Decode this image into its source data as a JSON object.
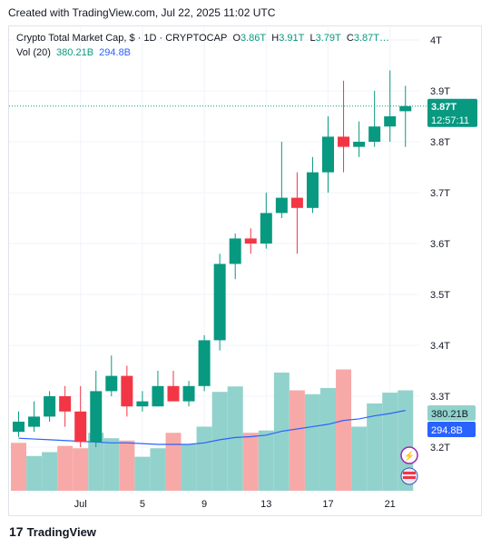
{
  "header": {
    "created_text": "Created with TradingView.com, Jul 22, 2025 11:02 UTC"
  },
  "legend": {
    "symbol": "Crypto Total Market Cap, $ · 1D · CRYPTOCAP",
    "o_label": "O",
    "o_value": "3.86T",
    "h_label": "H",
    "h_value": "3.91T",
    "l_label": "L",
    "l_value": "3.79T",
    "c_label": "C",
    "c_value": "3.87T…",
    "vol_label": "Vol (20)",
    "vol_value": "380.21B",
    "vol_ma_value": "294.8B"
  },
  "badges": {
    "price": "3.87T",
    "countdown": "12:57:11",
    "volume": "380.21B",
    "volume_ma": "294.8B"
  },
  "footer": {
    "brand": "TradingView"
  },
  "colors": {
    "up": "#089981",
    "down": "#f23645",
    "vol_up": "#92d2cc",
    "vol_down": "#f7a9a7",
    "ma": "#2962ff"
  },
  "chart_data": {
    "type": "candlestick",
    "y_axis_ticks": [
      "4T",
      "3.9T",
      "3.8T",
      "3.7T",
      "3.6T",
      "3.5T",
      "3.4T",
      "3.3T",
      "3.2T"
    ],
    "x_axis_ticks": [
      "Jul",
      "5",
      "9",
      "13",
      "17",
      "21"
    ],
    "ylim": [
      3.1,
      4.0
    ],
    "last_close": 3.87,
    "candles": [
      {
        "o": 3.23,
        "h": 3.27,
        "l": 3.22,
        "c": 3.25
      },
      {
        "o": 3.24,
        "h": 3.29,
        "l": 3.23,
        "c": 3.26
      },
      {
        "o": 3.26,
        "h": 3.31,
        "l": 3.25,
        "c": 3.3
      },
      {
        "o": 3.3,
        "h": 3.32,
        "l": 3.24,
        "c": 3.27
      },
      {
        "o": 3.27,
        "h": 3.32,
        "l": 3.2,
        "c": 3.21
      },
      {
        "o": 3.21,
        "h": 3.35,
        "l": 3.2,
        "c": 3.31
      },
      {
        "o": 3.31,
        "h": 3.38,
        "l": 3.3,
        "c": 3.34
      },
      {
        "o": 3.34,
        "h": 3.36,
        "l": 3.26,
        "c": 3.28
      },
      {
        "o": 3.28,
        "h": 3.31,
        "l": 3.27,
        "c": 3.29
      },
      {
        "o": 3.28,
        "h": 3.35,
        "l": 3.28,
        "c": 3.32
      },
      {
        "o": 3.32,
        "h": 3.35,
        "l": 3.29,
        "c": 3.29
      },
      {
        "o": 3.29,
        "h": 3.33,
        "l": 3.28,
        "c": 3.32
      },
      {
        "o": 3.32,
        "h": 3.42,
        "l": 3.31,
        "c": 3.41
      },
      {
        "o": 3.41,
        "h": 3.58,
        "l": 3.39,
        "c": 3.56
      },
      {
        "o": 3.56,
        "h": 3.62,
        "l": 3.53,
        "c": 3.61
      },
      {
        "o": 3.61,
        "h": 3.63,
        "l": 3.58,
        "c": 3.6
      },
      {
        "o": 3.6,
        "h": 3.7,
        "l": 3.59,
        "c": 3.66
      },
      {
        "o": 3.66,
        "h": 3.8,
        "l": 3.65,
        "c": 3.69
      },
      {
        "o": 3.69,
        "h": 3.74,
        "l": 3.58,
        "c": 3.67
      },
      {
        "o": 3.67,
        "h": 3.77,
        "l": 3.66,
        "c": 3.74
      },
      {
        "o": 3.74,
        "h": 3.85,
        "l": 3.7,
        "c": 3.81
      },
      {
        "o": 3.81,
        "h": 3.92,
        "l": 3.74,
        "c": 3.79
      },
      {
        "o": 3.79,
        "h": 3.84,
        "l": 3.77,
        "c": 3.8
      },
      {
        "o": 3.8,
        "h": 3.9,
        "l": 3.79,
        "c": 3.83
      },
      {
        "o": 3.83,
        "h": 3.94,
        "l": 3.8,
        "c": 3.85
      },
      {
        "o": 3.86,
        "h": 3.91,
        "l": 3.79,
        "c": 3.87
      }
    ],
    "volume": [
      {
        "v": 0.62,
        "up": false
      },
      {
        "v": 0.45,
        "up": true
      },
      {
        "v": 0.5,
        "up": true
      },
      {
        "v": 0.58,
        "up": false
      },
      {
        "v": 0.55,
        "up": false
      },
      {
        "v": 0.75,
        "up": true
      },
      {
        "v": 0.68,
        "up": true
      },
      {
        "v": 0.65,
        "up": false
      },
      {
        "v": 0.44,
        "up": true
      },
      {
        "v": 0.55,
        "up": true
      },
      {
        "v": 0.75,
        "up": false
      },
      {
        "v": 0.6,
        "up": true
      },
      {
        "v": 0.83,
        "up": true
      },
      {
        "v": 1.28,
        "up": true
      },
      {
        "v": 1.35,
        "up": true
      },
      {
        "v": 0.75,
        "up": false
      },
      {
        "v": 0.78,
        "up": true
      },
      {
        "v": 1.53,
        "up": true
      },
      {
        "v": 1.3,
        "up": false
      },
      {
        "v": 1.25,
        "up": true
      },
      {
        "v": 1.33,
        "up": true
      },
      {
        "v": 1.57,
        "up": false
      },
      {
        "v": 0.83,
        "up": true
      },
      {
        "v": 1.13,
        "up": true
      },
      {
        "v": 1.27,
        "up": true
      },
      {
        "v": 1.3,
        "up": true
      }
    ],
    "volume_ma": [
      0.68,
      0.67,
      0.66,
      0.65,
      0.64,
      0.63,
      0.62,
      0.62,
      0.61,
      0.6,
      0.6,
      0.6,
      0.62,
      0.66,
      0.69,
      0.7,
      0.72,
      0.77,
      0.8,
      0.83,
      0.86,
      0.91,
      0.93,
      0.97,
      1.0,
      1.04
    ]
  }
}
